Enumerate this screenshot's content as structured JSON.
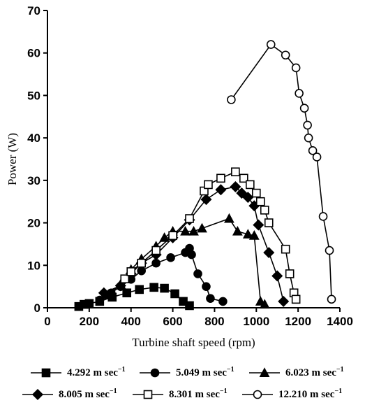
{
  "chart_data": {
    "type": "line",
    "xlabel": "Turbine shaft speed (rpm)",
    "ylabel": "Power (W)",
    "xlim": [
      0,
      1400
    ],
    "ylim": [
      0,
      70
    ],
    "xticks": [
      0,
      200,
      400,
      600,
      800,
      1000,
      1200,
      1400
    ],
    "yticks": [
      0,
      10,
      20,
      30,
      40,
      50,
      60,
      70
    ],
    "grid": false,
    "legend_position": "bottom",
    "series": [
      {
        "name": "4.292 m sec",
        "name_exponent": "−1",
        "marker": "square-filled",
        "x": [
          150,
          175,
          200,
          250,
          310,
          380,
          440,
          510,
          560,
          610,
          650,
          680
        ],
        "y": [
          0.3,
          0.8,
          1.0,
          1.5,
          2.5,
          3.5,
          4.3,
          4.8,
          4.6,
          3.3,
          1.5,
          0.5
        ]
      },
      {
        "name": "5.049 m sec",
        "name_exponent": "−1",
        "marker": "circle-filled",
        "x": [
          250,
          305,
          350,
          400,
          450,
          520,
          590,
          660,
          680,
          690,
          720,
          760,
          780,
          840
        ],
        "y": [
          1.8,
          3.5,
          5.0,
          6.7,
          8.7,
          10.5,
          11.8,
          13.0,
          14.0,
          12.5,
          8.0,
          5.0,
          2.2,
          1.5
        ]
      },
      {
        "name": "6.023 m sec",
        "name_exponent": "−1",
        "marker": "triangle-filled",
        "x": [
          290,
          350,
          400,
          450,
          520,
          560,
          600,
          660,
          700,
          740,
          870,
          910,
          960,
          990,
          1020,
          1040
        ],
        "y": [
          3.0,
          5.5,
          9.0,
          11.5,
          14.5,
          16.5,
          18.0,
          18.0,
          18.0,
          18.7,
          21.0,
          18.0,
          17.3,
          17.0,
          1.5,
          0.8
        ]
      },
      {
        "name": "8.005 m sec",
        "name_exponent": "−1",
        "marker": "diamond-filled",
        "x": [
          270,
          350,
          400,
          450,
          520,
          600,
          680,
          760,
          830,
          900,
          930,
          960,
          990,
          1010,
          1060,
          1100,
          1130
        ],
        "y": [
          3.5,
          5.2,
          8.0,
          10.5,
          12.5,
          16.5,
          20.7,
          25.5,
          27.8,
          28.5,
          27.0,
          26.0,
          24.0,
          19.5,
          13.0,
          7.5,
          1.5
        ]
      },
      {
        "name": "8.301 m sec",
        "name_exponent": "−1",
        "marker": "square-open",
        "x": [
          370,
          400,
          450,
          520,
          600,
          680,
          750,
          770,
          830,
          900,
          940,
          970,
          1000,
          1020,
          1040,
          1060,
          1140,
          1160,
          1180,
          1190
        ],
        "y": [
          6.8,
          8.5,
          10.5,
          13.5,
          17.0,
          21.0,
          27.5,
          29.0,
          30.5,
          32.0,
          30.5,
          29.0,
          27.0,
          25.0,
          23.0,
          20.0,
          13.8,
          8.0,
          3.5,
          2.0
        ]
      },
      {
        "name": "12.210 m sec",
        "name_exponent": "−1",
        "marker": "circle-open",
        "x": [
          880,
          1070,
          1140,
          1190,
          1205,
          1230,
          1245,
          1250,
          1270,
          1290,
          1320,
          1350,
          1360
        ],
        "y": [
          49.0,
          62.0,
          59.5,
          56.5,
          50.5,
          47.0,
          43.0,
          40.0,
          37.0,
          35.5,
          21.5,
          13.5,
          2.0
        ]
      }
    ]
  }
}
